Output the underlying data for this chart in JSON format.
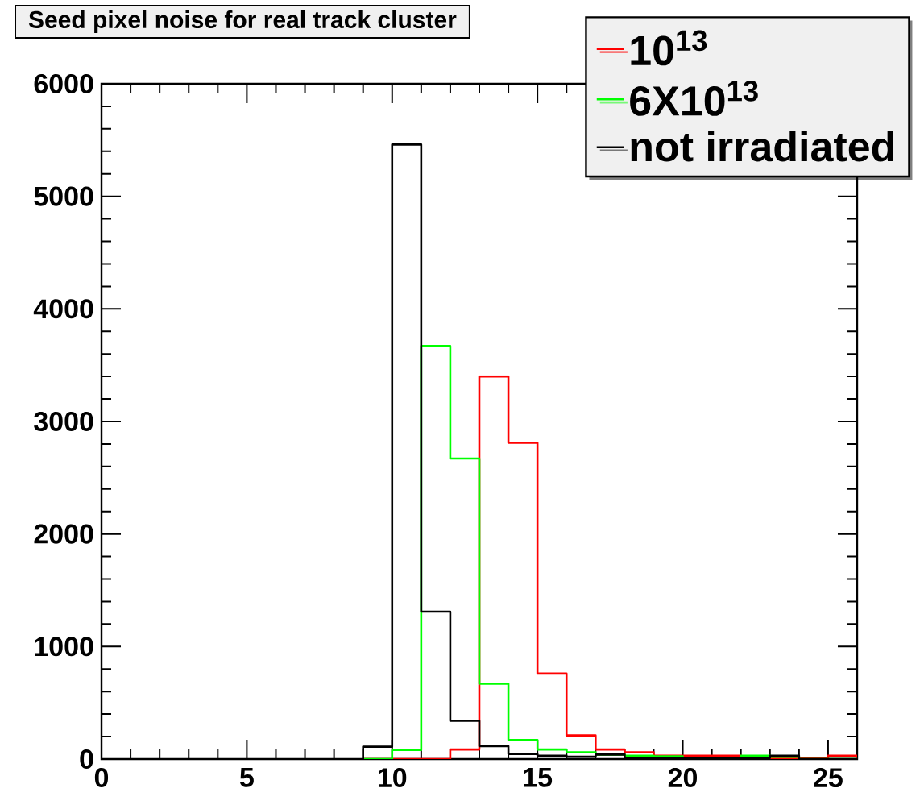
{
  "chart_data": {
    "type": "histogram",
    "title": "Seed pixel noise for real track cluster",
    "bins": [
      9,
      10,
      11,
      12,
      13,
      14,
      15,
      16,
      17,
      18,
      19,
      20,
      21,
      22,
      23,
      24,
      25,
      26
    ],
    "series": [
      {
        "name": "10$^{13}$",
        "color": "#ff0000",
        "values": [
          0,
          0,
          0,
          85,
          3400,
          2810,
          760,
          210,
          85,
          60,
          30,
          30,
          30,
          10,
          10,
          10,
          30
        ]
      },
      {
        "name": "6X10$^{13}$",
        "color": "#00ff00",
        "values": [
          0,
          80,
          3670,
          2670,
          670,
          170,
          85,
          60,
          40,
          30,
          25,
          10,
          10,
          30,
          20,
          0,
          0
        ]
      },
      {
        "name": "not irradiated",
        "color": "#000000",
        "values": [
          110,
          5460,
          1310,
          340,
          115,
          45,
          30,
          20,
          40,
          10,
          10,
          10,
          10,
          10,
          30,
          0,
          0
        ]
      }
    ],
    "xlim": [
      0,
      26
    ],
    "ylim": [
      0,
      6000
    ],
    "xticks": [
      0,
      5,
      10,
      15,
      20,
      25
    ],
    "yticks": [
      0,
      1000,
      2000,
      3000,
      4000,
      5000,
      6000
    ],
    "legend": "top right"
  }
}
